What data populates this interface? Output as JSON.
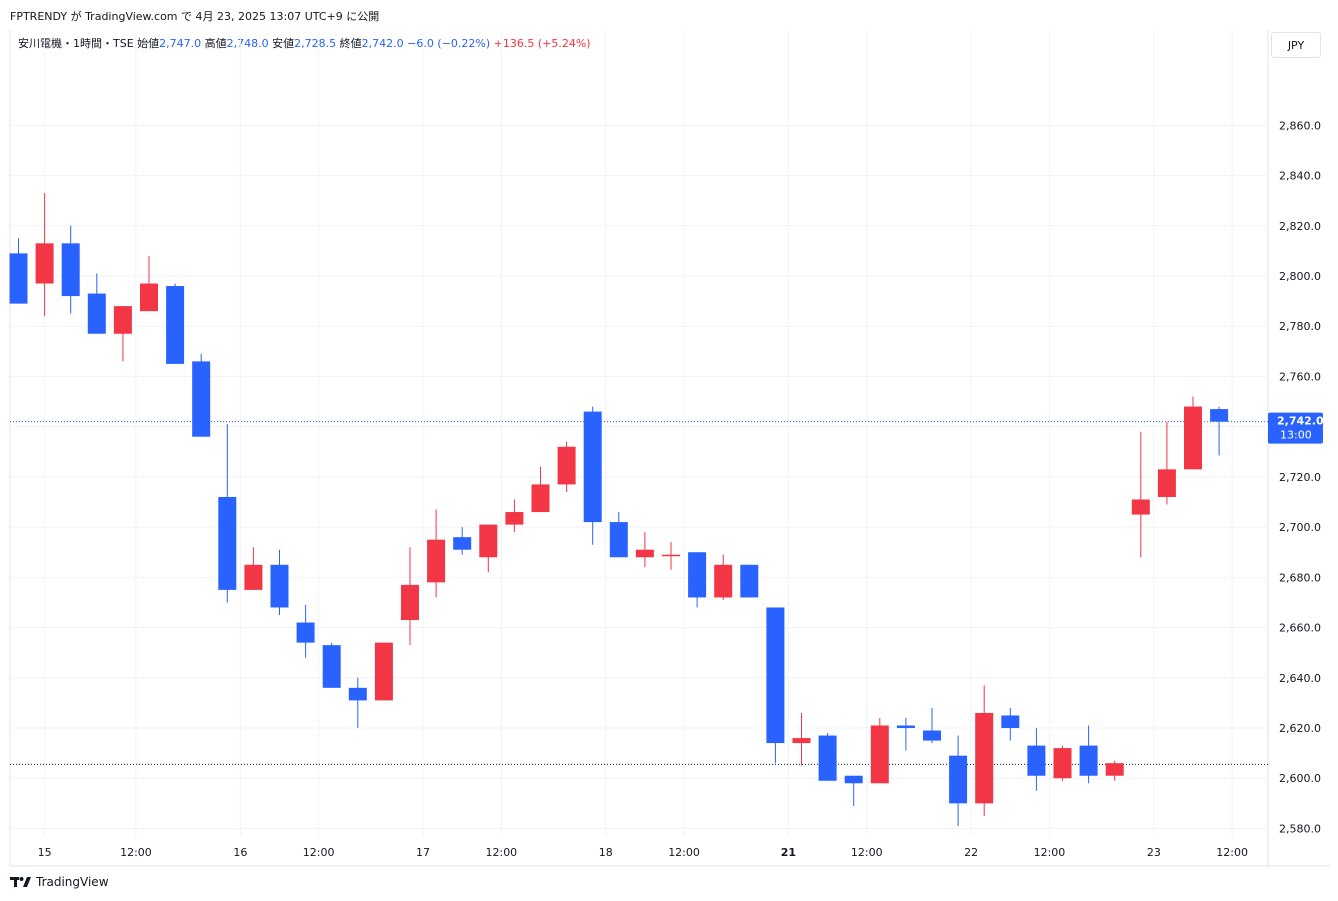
{
  "header": {
    "published_by": "FPTRENDY が TradingView.com で 4月 23, 2025 13:07 UTC+9 に公開"
  },
  "legend": {
    "symbol": "安川電機・1時間・TSE",
    "open_label": "始値",
    "open_value": "2,747.0",
    "high_label": "高値",
    "high_value": "2,748.0",
    "low_label": "安値",
    "low_value": "2,728.5",
    "close_label": "終値",
    "close_value": "2,742.0",
    "change": "−6.0 (−0.22%)",
    "change_total": "+136.5 (+5.24%)"
  },
  "currency": "JPY",
  "footer": {
    "brand": "TradingView",
    "icon": "tradingview-logo-icon"
  },
  "colors": {
    "up": "#f23645",
    "down": "#2962ff",
    "grid": "#f0f3fa",
    "price_tag": "#2962ff"
  },
  "chart_data": {
    "type": "candlestick",
    "y_range": [
      2577,
      2888
    ],
    "y_ticks": [
      2580,
      2600,
      2620,
      2640,
      2660,
      2680,
      2700,
      2720,
      2740,
      2760,
      2780,
      2800,
      2820,
      2840,
      2860
    ],
    "y_tick_labels": [
      "2,580.0",
      "2,600.0",
      "2,620.0",
      "2,640.0",
      "2,660.0",
      "2,680.0",
      "2,700.0",
      "2,720.0",
      "",
      "2,760.0",
      "2,780.0",
      "2,800.0",
      "2,820.0",
      "2,840.0",
      "2,860.0"
    ],
    "x_labels": [
      {
        "index": 1,
        "text": "15",
        "bold": false
      },
      {
        "index": 4.5,
        "text": "12:00",
        "bold": false
      },
      {
        "index": 8.5,
        "text": "16",
        "bold": false
      },
      {
        "index": 11.5,
        "text": "12:00",
        "bold": false
      },
      {
        "index": 15.5,
        "text": "17",
        "bold": false
      },
      {
        "index": 18.5,
        "text": "12:00",
        "bold": false
      },
      {
        "index": 22.5,
        "text": "18",
        "bold": false
      },
      {
        "index": 25.5,
        "text": "12:00",
        "bold": false
      },
      {
        "index": 29.5,
        "text": "21",
        "bold": true
      },
      {
        "index": 32.5,
        "text": "12:00",
        "bold": false
      },
      {
        "index": 36.5,
        "text": "22",
        "bold": false
      },
      {
        "index": 39.5,
        "text": "12:00",
        "bold": false
      },
      {
        "index": 43.5,
        "text": "23",
        "bold": false
      },
      {
        "index": 46.5,
        "text": "12:00",
        "bold": false
      }
    ],
    "last_price_label": "2,742.0",
    "last_time_label": "13:00",
    "last_price": 2742,
    "prev_close_line": 2605.5,
    "candles": [
      {
        "o": 2809,
        "h": 2815,
        "l": 2789,
        "c": 2789
      },
      {
        "o": 2797,
        "h": 2833,
        "l": 2784,
        "c": 2813
      },
      {
        "o": 2813,
        "h": 2820,
        "l": 2785,
        "c": 2792
      },
      {
        "o": 2793,
        "h": 2801,
        "l": 2777,
        "c": 2777
      },
      {
        "o": 2777,
        "h": 2787,
        "l": 2766,
        "c": 2788
      },
      {
        "o": 2786,
        "h": 2808,
        "l": 2786,
        "c": 2797
      },
      {
        "o": 2796,
        "h": 2797,
        "l": 2765,
        "c": 2765
      },
      {
        "o": 2766,
        "h": 2769,
        "l": 2736,
        "c": 2736
      },
      {
        "o": 2712,
        "h": 2741,
        "l": 2670,
        "c": 2675
      },
      {
        "o": 2675,
        "h": 2692,
        "l": 2675,
        "c": 2685
      },
      {
        "o": 2685,
        "h": 2691,
        "l": 2665,
        "c": 2668
      },
      {
        "o": 2662,
        "h": 2669,
        "l": 2648,
        "c": 2654
      },
      {
        "o": 2653,
        "h": 2654,
        "l": 2636,
        "c": 2636
      },
      {
        "o": 2636,
        "h": 2640,
        "l": 2620,
        "c": 2631
      },
      {
        "o": 2631,
        "h": 2654,
        "l": 2631,
        "c": 2654
      },
      {
        "o": 2663,
        "h": 2692,
        "l": 2653,
        "c": 2677
      },
      {
        "o": 2678,
        "h": 2707,
        "l": 2672,
        "c": 2695
      },
      {
        "o": 2696,
        "h": 2700,
        "l": 2689,
        "c": 2691
      },
      {
        "o": 2688,
        "h": 2701,
        "l": 2682,
        "c": 2701
      },
      {
        "o": 2701,
        "h": 2711,
        "l": 2698,
        "c": 2706
      },
      {
        "o": 2706,
        "h": 2724,
        "l": 2706,
        "c": 2717
      },
      {
        "o": 2717,
        "h": 2734,
        "l": 2714,
        "c": 2732
      },
      {
        "o": 2746,
        "h": 2748,
        "l": 2693,
        "c": 2702
      },
      {
        "o": 2702,
        "h": 2706,
        "l": 2688,
        "c": 2688
      },
      {
        "o": 2688,
        "h": 2698,
        "l": 2684,
        "c": 2691
      },
      {
        "o": 2689,
        "h": 2694,
        "l": 2683,
        "c": 2689
      },
      {
        "o": 2690,
        "h": 2690,
        "l": 2668,
        "c": 2672
      },
      {
        "o": 2672,
        "h": 2689,
        "l": 2671,
        "c": 2685
      },
      {
        "o": 2685,
        "h": 2685,
        "l": 2672,
        "c": 2672
      },
      {
        "o": 2668,
        "h": 2668,
        "l": 2606,
        "c": 2614
      },
      {
        "o": 2614,
        "h": 2626,
        "l": 2605,
        "c": 2616
      },
      {
        "o": 2617,
        "h": 2618,
        "l": 2599,
        "c": 2599
      },
      {
        "o": 2601,
        "h": 2601,
        "l": 2589,
        "c": 2598
      },
      {
        "o": 2598,
        "h": 2624,
        "l": 2598,
        "c": 2621
      },
      {
        "o": 2621,
        "h": 2624,
        "l": 2611,
        "c": 2620
      },
      {
        "o": 2619,
        "h": 2628,
        "l": 2614,
        "c": 2615
      },
      {
        "o": 2609,
        "h": 2617,
        "l": 2581,
        "c": 2590
      },
      {
        "o": 2590,
        "h": 2637,
        "l": 2585,
        "c": 2626
      },
      {
        "o": 2625,
        "h": 2628,
        "l": 2615,
        "c": 2620
      },
      {
        "o": 2613,
        "h": 2620,
        "l": 2595,
        "c": 2601
      },
      {
        "o": 2600,
        "h": 2613,
        "l": 2599,
        "c": 2612
      },
      {
        "o": 2613,
        "h": 2621,
        "l": 2598,
        "c": 2601
      },
      {
        "o": 2601,
        "h": 2607,
        "l": 2599,
        "c": 2606
      },
      {
        "o": 2705,
        "h": 2738,
        "l": 2688,
        "c": 2711
      },
      {
        "o": 2712,
        "h": 2742,
        "l": 2709,
        "c": 2723
      },
      {
        "o": 2723,
        "h": 2752,
        "l": 2723,
        "c": 2748
      },
      {
        "o": 2747,
        "h": 2748,
        "l": 2728.5,
        "c": 2742
      }
    ]
  }
}
